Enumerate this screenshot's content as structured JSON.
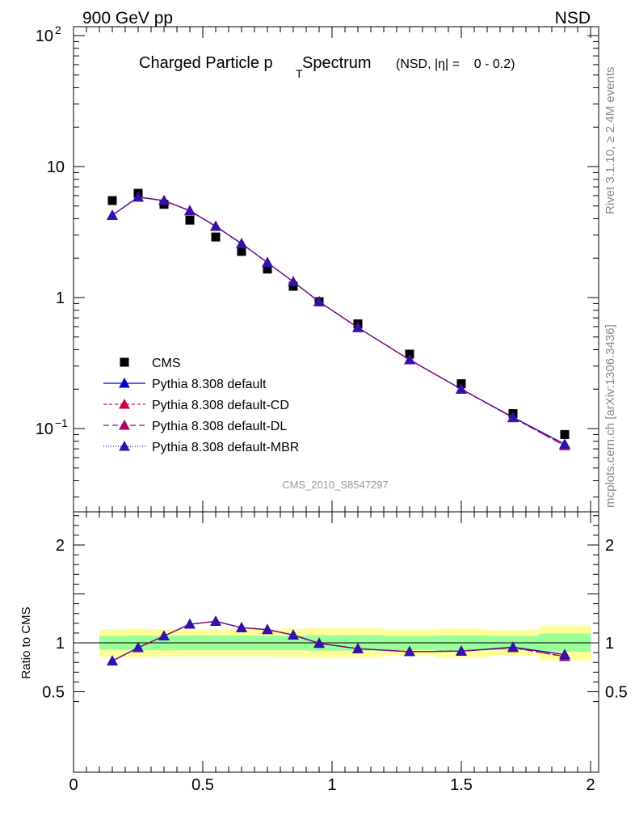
{
  "header": {
    "left": "900 GeV pp",
    "right": "NSD"
  },
  "title": {
    "main": "Charged Particle p",
    "sub": "T",
    "main2": " Spectrum",
    "suffix": "(NSD, |η| =    0 - 0.2)"
  },
  "side_labels": {
    "rivet": "Rivet 3.1.10, ≥ 2.4M events",
    "source": "mcplots.cern.ch [arXiv:1306.3436]"
  },
  "analysis_id": "CMS_2010_S8547297",
  "ratio_ylabel": "Ratio to CMS",
  "legend": [
    {
      "label": "CMS",
      "marker": "square",
      "color": "#000000",
      "dash": ""
    },
    {
      "label": "Pythia 8.308 default",
      "marker": "triangle",
      "color": "#0000cc",
      "dash": ""
    },
    {
      "label": "Pythia 8.308 default-CD",
      "marker": "triangle",
      "color": "#cc0044",
      "dash": "4,3"
    },
    {
      "label": "Pythia 8.308 default-DL",
      "marker": "triangle",
      "color": "#aa0066",
      "dash": "7,4"
    },
    {
      "label": "Pythia 8.308 default-MBR",
      "marker": "triangle",
      "color": "#3311aa",
      "dash": "1,2"
    }
  ],
  "colors": {
    "band_inner": "#99ff99",
    "band_outer": "#ffff99",
    "reference_line": "#000000"
  },
  "chart_data": [
    {
      "type": "scatter",
      "panel": "main",
      "yscale": "log",
      "xlim": [
        0,
        2
      ],
      "ylim": [
        0.025,
        120
      ],
      "y_ticks": [
        {
          "value": 100,
          "label": "10",
          "exp": "2"
        },
        {
          "value": 10,
          "label": "10",
          "exp": ""
        },
        {
          "value": 1,
          "label": "1",
          "exp": ""
        },
        {
          "value": 0.1,
          "label": "10",
          "exp": "−1"
        }
      ],
      "x": [
        0.15,
        0.25,
        0.35,
        0.45,
        0.55,
        0.65,
        0.75,
        0.85,
        0.95,
        1.1,
        1.3,
        1.5,
        1.7,
        1.9
      ],
      "series": [
        {
          "name": "CMS",
          "values": [
            5.5,
            6.25,
            5.15,
            3.9,
            2.9,
            2.25,
            1.65,
            1.22,
            0.93,
            0.63,
            0.37,
            0.22,
            0.13,
            0.09
          ]
        },
        {
          "name": "Pythia 8.308 default",
          "values": [
            4.25,
            5.85,
            5.5,
            4.6,
            3.5,
            2.58,
            1.85,
            1.32,
            0.93,
            0.59,
            0.335,
            0.2,
            0.122,
            0.076
          ]
        },
        {
          "name": "Pythia 8.308 default-CD",
          "values": [
            4.25,
            5.85,
            5.5,
            4.6,
            3.5,
            2.58,
            1.85,
            1.32,
            0.93,
            0.59,
            0.335,
            0.2,
            0.121,
            0.074
          ]
        },
        {
          "name": "Pythia 8.308 default-DL",
          "values": [
            4.25,
            5.85,
            5.5,
            4.6,
            3.5,
            2.58,
            1.85,
            1.32,
            0.93,
            0.59,
            0.335,
            0.2,
            0.121,
            0.074
          ]
        },
        {
          "name": "Pythia 8.308 default-MBR",
          "values": [
            4.25,
            5.85,
            5.5,
            4.6,
            3.5,
            2.58,
            1.85,
            1.32,
            0.93,
            0.59,
            0.335,
            0.2,
            0.122,
            0.076
          ]
        }
      ]
    },
    {
      "type": "line",
      "panel": "ratio",
      "xlim": [
        0,
        2
      ],
      "ylim": [
        0.35,
        2.3
      ],
      "x_ticks": [
        0,
        0.5,
        1,
        1.5,
        2
      ],
      "x_tick_labels": [
        "0",
        "0.5",
        "1",
        "1.5",
        "2"
      ],
      "y_ticks": [
        0.5,
        1,
        2
      ],
      "y_tick_labels": [
        "0.5",
        "1",
        "2"
      ],
      "bands": [
        {
          "x0": 0.1,
          "x1": 0.2,
          "inner": [
            0.93,
            1.07
          ],
          "outer": [
            0.86,
            1.14
          ]
        },
        {
          "x0": 0.2,
          "x1": 0.3,
          "inner": [
            0.925,
            1.075
          ],
          "outer": [
            0.855,
            1.145
          ]
        },
        {
          "x0": 0.3,
          "x1": 0.4,
          "inner": [
            0.925,
            1.075
          ],
          "outer": [
            0.86,
            1.14
          ]
        },
        {
          "x0": 0.4,
          "x1": 0.5,
          "inner": [
            0.925,
            1.075
          ],
          "outer": [
            0.86,
            1.14
          ]
        },
        {
          "x0": 0.5,
          "x1": 0.6,
          "inner": [
            0.925,
            1.075
          ],
          "outer": [
            0.86,
            1.14
          ]
        },
        {
          "x0": 0.6,
          "x1": 0.7,
          "inner": [
            0.925,
            1.075
          ],
          "outer": [
            0.86,
            1.14
          ]
        },
        {
          "x0": 0.7,
          "x1": 0.8,
          "inner": [
            0.925,
            1.075
          ],
          "outer": [
            0.86,
            1.14
          ]
        },
        {
          "x0": 0.8,
          "x1": 0.9,
          "inner": [
            0.925,
            1.075
          ],
          "outer": [
            0.855,
            1.145
          ]
        },
        {
          "x0": 0.9,
          "x1": 1.0,
          "inner": [
            0.92,
            1.08
          ],
          "outer": [
            0.845,
            1.15
          ]
        },
        {
          "x0": 1.0,
          "x1": 1.2,
          "inner": [
            0.92,
            1.08
          ],
          "outer": [
            0.85,
            1.15
          ]
        },
        {
          "x0": 1.2,
          "x1": 1.4,
          "inner": [
            0.925,
            1.07
          ],
          "outer": [
            0.865,
            1.135
          ]
        },
        {
          "x0": 1.4,
          "x1": 1.6,
          "inner": [
            0.92,
            1.075
          ],
          "outer": [
            0.85,
            1.145
          ]
        },
        {
          "x0": 1.6,
          "x1": 1.8,
          "inner": [
            0.925,
            1.07
          ],
          "outer": [
            0.87,
            1.13
          ]
        },
        {
          "x0": 1.8,
          "x1": 2.0,
          "inner": [
            0.91,
            1.095
          ],
          "outer": [
            0.82,
            1.175
          ]
        }
      ],
      "x": [
        0.15,
        0.25,
        0.35,
        0.45,
        0.55,
        0.65,
        0.75,
        0.85,
        0.95,
        1.1,
        1.3,
        1.5,
        1.7,
        1.9
      ],
      "series": [
        {
          "name": "Pythia 8.308 default",
          "values": [
            0.815,
            0.95,
            1.07,
            1.19,
            1.22,
            1.155,
            1.135,
            1.08,
            0.995,
            0.94,
            0.91,
            0.915,
            0.955,
            0.88
          ]
        },
        {
          "name": "Pythia 8.308 default-CD",
          "values": [
            0.815,
            0.95,
            1.07,
            1.19,
            1.22,
            1.155,
            1.135,
            1.08,
            0.995,
            0.94,
            0.91,
            0.915,
            0.95,
            0.86
          ]
        },
        {
          "name": "Pythia 8.308 default-DL",
          "values": [
            0.815,
            0.95,
            1.07,
            1.19,
            1.22,
            1.155,
            1.135,
            1.08,
            0.995,
            0.94,
            0.91,
            0.915,
            0.95,
            0.86
          ]
        },
        {
          "name": "Pythia 8.308 default-MBR",
          "values": [
            0.815,
            0.95,
            1.07,
            1.19,
            1.22,
            1.155,
            1.135,
            1.08,
            0.995,
            0.94,
            0.91,
            0.915,
            0.955,
            0.88
          ]
        }
      ]
    }
  ]
}
